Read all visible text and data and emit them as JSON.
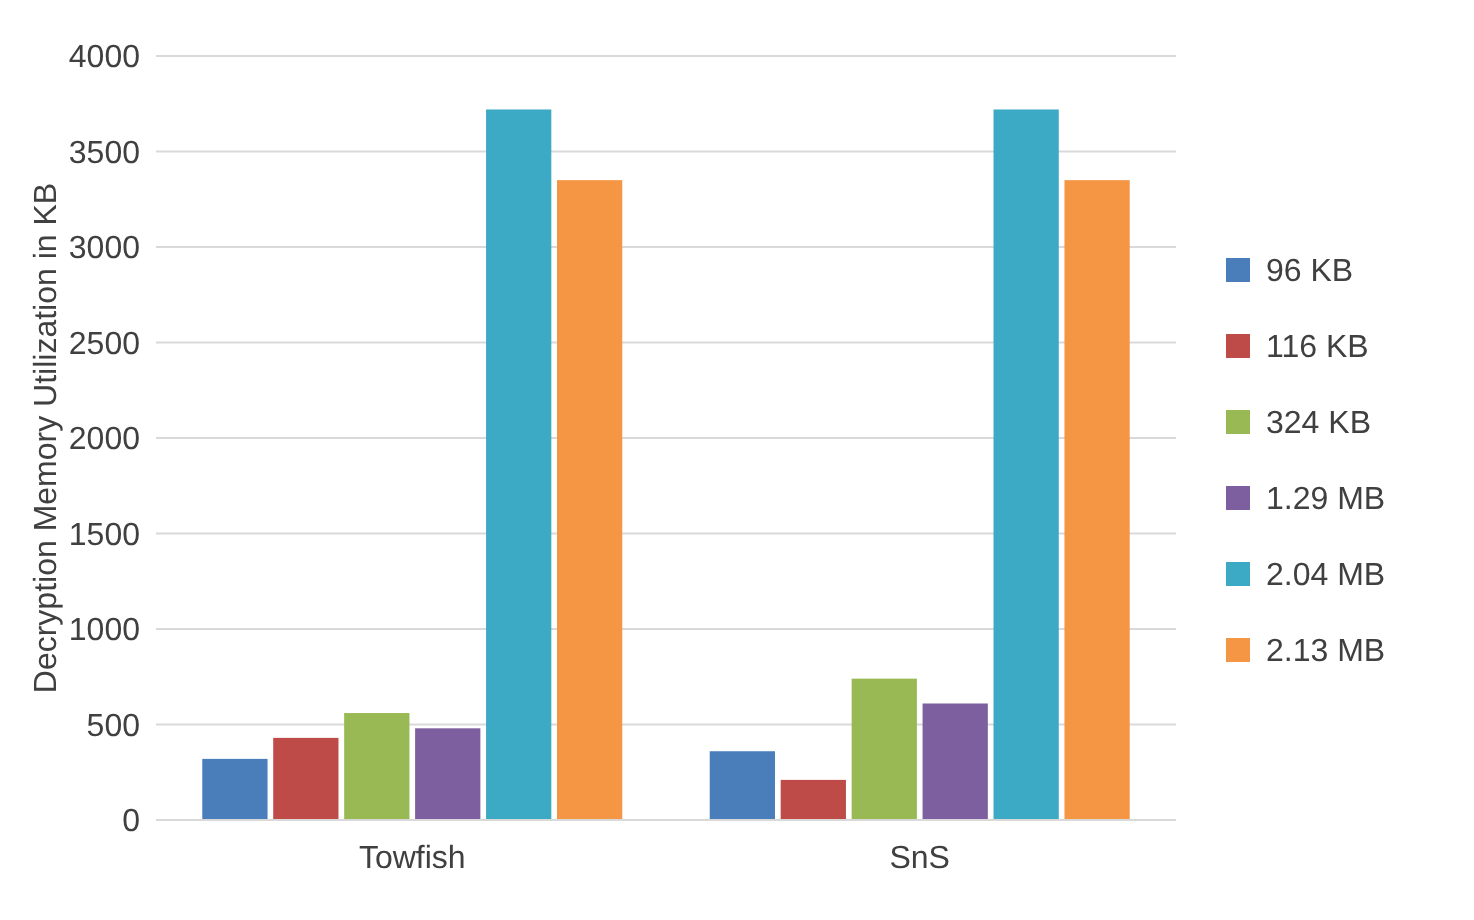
{
  "chart_data": {
    "type": "bar",
    "ylabel": "Decryption Memory Utilization in KB",
    "categories": [
      "Towfish",
      "SnS"
    ],
    "series": [
      {
        "name": "96 KB",
        "color": "#4a7ebb",
        "values": [
          320,
          360
        ]
      },
      {
        "name": "116 KB",
        "color": "#be4b48",
        "values": [
          430,
          210
        ]
      },
      {
        "name": "324 KB",
        "color": "#98b954",
        "values": [
          560,
          740
        ]
      },
      {
        "name": "1.29 MB",
        "color": "#7d5fa0",
        "values": [
          480,
          610
        ]
      },
      {
        "name": "2.04 MB",
        "color": "#3caac4",
        "values": [
          3720,
          3720
        ]
      },
      {
        "name": "2.13 MB",
        "color": "#f59645",
        "values": [
          3350,
          3350
        ]
      }
    ],
    "ylim": [
      0,
      4000
    ],
    "yticks": [
      0,
      500,
      1000,
      1500,
      2000,
      2500,
      3000,
      3500,
      4000
    ],
    "grid": "y",
    "legend": "right"
  }
}
